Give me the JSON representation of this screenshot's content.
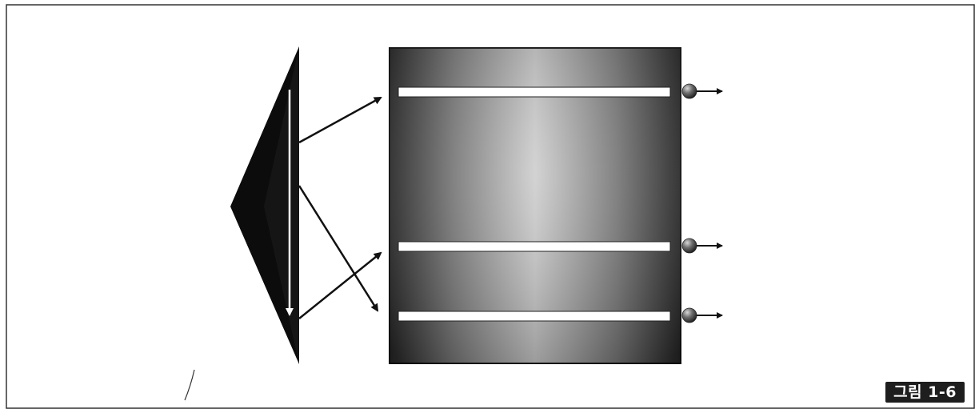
{
  "figure": {
    "label": "그림 1-6"
  },
  "diagram": {
    "panel_slits": 3,
    "output_particles": 3,
    "colors": {
      "border": "#333333",
      "prism": "#0c0c0c",
      "panel_dark": "#2a2a2a",
      "panel_light": "#c8c8c8",
      "slit": "#ffffff",
      "arrow": "#111111",
      "particle": "#6a6a6a"
    }
  }
}
